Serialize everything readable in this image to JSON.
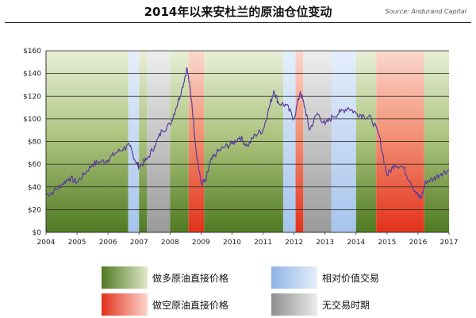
{
  "title": "2014年以来安杜兰的原油仓位变动",
  "source": "Source: Andurand Capital",
  "colors": {
    "long": "#4f7a22",
    "relative": "#aac7ea",
    "short": "#e83a1f",
    "none": "#a8a8a8",
    "line": "#5a3e9a"
  },
  "legend": [
    {
      "key": "long",
      "label": "做多原油直接价格"
    },
    {
      "key": "relative",
      "label": "相对价值交易"
    },
    {
      "key": "short",
      "label": "做空原油直接价格"
    },
    {
      "key": "none",
      "label": "无交易时期"
    }
  ],
  "chart_data": {
    "type": "line",
    "title": "2014年以来安杜兰的原油仓位变动",
    "xlim": [
      2004,
      2017
    ],
    "ylim": [
      0,
      160
    ],
    "x_ticks": [
      "2004",
      "2005",
      "2006",
      "2007",
      "2008",
      "2009",
      "2010",
      "2011",
      "2012",
      "2013",
      "2014",
      "2015",
      "2016",
      "2017"
    ],
    "y_ticks": [
      "$0",
      "$20",
      "$40",
      "$60",
      "$80",
      "$100",
      "$120",
      "$140",
      "$160"
    ],
    "grid": true,
    "bands": [
      {
        "from": 2004.0,
        "to": 2006.65,
        "type": "long"
      },
      {
        "from": 2006.65,
        "to": 2007.0,
        "type": "relative"
      },
      {
        "from": 2007.0,
        "to": 2007.25,
        "type": "long"
      },
      {
        "from": 2007.25,
        "to": 2008.0,
        "type": "none"
      },
      {
        "from": 2008.0,
        "to": 2008.6,
        "type": "long"
      },
      {
        "from": 2008.6,
        "to": 2009.1,
        "type": "short"
      },
      {
        "from": 2009.1,
        "to": 2011.65,
        "type": "long"
      },
      {
        "from": 2011.65,
        "to": 2012.05,
        "type": "relative"
      },
      {
        "from": 2012.05,
        "to": 2012.3,
        "type": "short"
      },
      {
        "from": 2012.3,
        "to": 2013.2,
        "type": "none"
      },
      {
        "from": 2013.2,
        "to": 2014.0,
        "type": "relative"
      },
      {
        "from": 2014.0,
        "to": 2014.65,
        "type": "long"
      },
      {
        "from": 2014.65,
        "to": 2016.2,
        "type": "short"
      },
      {
        "from": 2016.2,
        "to": 2017.0,
        "type": "long"
      }
    ],
    "series": [
      {
        "x": [
          2004.0,
          2004.25,
          2004.5,
          2004.75,
          2005.0,
          2005.25,
          2005.5,
          2005.75,
          2006.0,
          2006.25,
          2006.5,
          2006.7,
          2006.9,
          2007.0,
          2007.25,
          2007.5,
          2007.75,
          2008.0,
          2008.2,
          2008.4,
          2008.55,
          2008.7,
          2008.85,
          2009.0,
          2009.15,
          2009.3,
          2009.5,
          2009.75,
          2010.0,
          2010.25,
          2010.5,
          2010.75,
          2011.0,
          2011.15,
          2011.35,
          2011.5,
          2011.75,
          2012.0,
          2012.2,
          2012.35,
          2012.5,
          2012.75,
          2013.0,
          2013.25,
          2013.5,
          2013.75,
          2014.0,
          2014.25,
          2014.5,
          2014.75,
          2015.0,
          2015.25,
          2015.5,
          2015.75,
          2016.0,
          2016.1,
          2016.25,
          2016.5,
          2016.75,
          2017.0
        ],
        "y": [
          33,
          36,
          42,
          48,
          44,
          52,
          60,
          62,
          64,
          70,
          74,
          76,
          62,
          58,
          64,
          76,
          90,
          95,
          110,
          128,
          145,
          115,
          70,
          43,
          45,
          62,
          70,
          75,
          78,
          84,
          76,
          86,
          90,
          105,
          125,
          114,
          112,
          100,
          124,
          110,
          90,
          105,
          95,
          102,
          106,
          110,
          105,
          103,
          100,
          85,
          50,
          60,
          58,
          45,
          32,
          30,
          45,
          47,
          52,
          55
        ]
      }
    ]
  }
}
